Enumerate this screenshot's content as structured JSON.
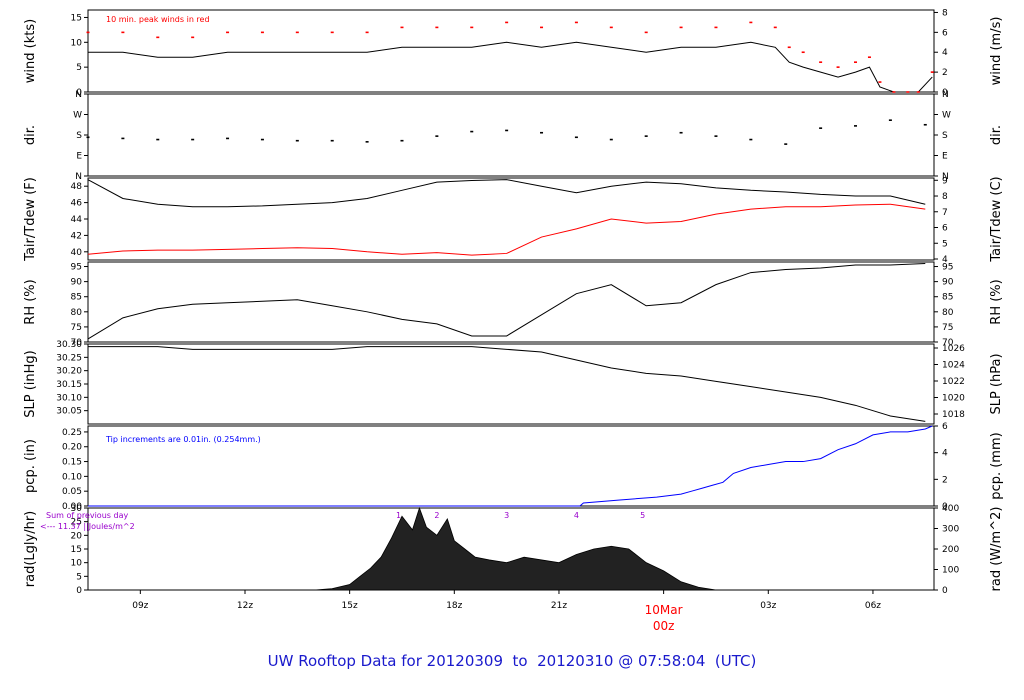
{
  "footer": {
    "title": "UW Rooftop Data for 20120309  to  20120310 @ 07:58:04  (UTC)"
  },
  "colors": {
    "axis": "#000000",
    "peak": "#ff0000",
    "dew": "#ff0000",
    "precip": "#0000ff",
    "radnote": "#9900cc",
    "title": "#1a1acc",
    "date": "#ff0000"
  },
  "chart_data": [
    {
      "id": "wind",
      "type": "line",
      "ylabel": "wind (kts)",
      "ylabel_right": "wind (m/s)",
      "ylim": [
        0,
        16.5
      ],
      "yticks": [
        0,
        5,
        10,
        15
      ],
      "yticks_right": [
        0,
        2,
        4,
        6,
        8
      ],
      "annotation": "10 min. peak winds in red",
      "x": [
        7.5,
        8.5,
        9.5,
        10.5,
        11.5,
        12.5,
        13.5,
        14.5,
        15.5,
        16.5,
        17.5,
        18.5,
        19.5,
        20.5,
        21.5,
        22.5,
        23.5,
        24.5,
        25.5,
        26.5,
        27.2,
        27.6,
        28.0,
        28.5,
        29.0,
        29.5,
        29.9,
        30.2,
        30.6,
        31.0,
        31.3,
        31.7
      ],
      "series": [
        {
          "values": [
            8,
            8,
            7,
            7,
            8,
            8,
            8,
            8,
            8,
            9,
            9,
            9,
            10,
            9,
            10,
            9,
            8,
            9,
            9,
            10,
            9,
            6,
            5,
            4,
            3,
            4,
            5,
            1,
            0,
            0,
            0,
            3
          ]
        },
        {
          "values": [
            12,
            12,
            11,
            11,
            12,
            12,
            12,
            12,
            12,
            13,
            13,
            13,
            14,
            13,
            14,
            13,
            12,
            13,
            13,
            14,
            13,
            9,
            8,
            6,
            5,
            6,
            7,
            2,
            0,
            0,
            0,
            4
          ]
        }
      ]
    },
    {
      "id": "dir",
      "type": "scatter",
      "ylabel": "dir.",
      "ylabel_right": "dir.",
      "ylim": [
        0,
        360
      ],
      "ytick_labels": [
        "N",
        "E",
        "S",
        "W",
        "N"
      ],
      "x": [
        7.5,
        8.5,
        9.5,
        10.5,
        11.5,
        12.5,
        13.5,
        14.5,
        15.5,
        16.5,
        17.5,
        18.5,
        19.5,
        20.5,
        21.5,
        22.5,
        23.5,
        24.5,
        25.5,
        26.5,
        27.5,
        28.5,
        29.5,
        30.5,
        31.5
      ],
      "series": [
        {
          "values": [
            170,
            165,
            160,
            160,
            165,
            160,
            155,
            155,
            150,
            155,
            175,
            195,
            200,
            190,
            170,
            160,
            175,
            190,
            175,
            160,
            140,
            210,
            220,
            245,
            225
          ]
        }
      ]
    },
    {
      "id": "temp",
      "type": "line",
      "ylabel": "Tair/Tdew (F)",
      "ylabel_right": "Tair/Tdew (C)",
      "ylim": [
        39,
        49
      ],
      "yticks": [
        40,
        42,
        44,
        46,
        48
      ],
      "yticks_right": [
        4,
        5,
        6,
        7,
        8,
        9
      ],
      "x": [
        7.5,
        8.5,
        9.5,
        10.5,
        11.5,
        12.5,
        13.5,
        14.5,
        15.5,
        16.5,
        17.5,
        18.5,
        19.5,
        20.5,
        21.5,
        22.5,
        23.5,
        24.5,
        25.5,
        26.5,
        27.5,
        28.5,
        29.5,
        30.5,
        31.5
      ],
      "series": [
        {
          "name": "Tair",
          "values": [
            48.8,
            46.5,
            45.8,
            45.5,
            45.5,
            45.6,
            45.8,
            46.0,
            46.5,
            47.5,
            48.5,
            48.7,
            48.8,
            48.0,
            47.2,
            48.0,
            48.5,
            48.3,
            47.8,
            47.5,
            47.3,
            47.0,
            46.8,
            46.8,
            45.8
          ]
        },
        {
          "name": "Tdew",
          "values": [
            39.7,
            40.1,
            40.2,
            40.2,
            40.3,
            40.4,
            40.5,
            40.4,
            40.0,
            39.7,
            39.9,
            39.6,
            39.8,
            41.8,
            42.8,
            44.0,
            43.5,
            43.7,
            44.6,
            45.2,
            45.5,
            45.5,
            45.7,
            45.8,
            45.2
          ]
        }
      ]
    },
    {
      "id": "rh",
      "type": "line",
      "ylabel": "RH (%)",
      "ylabel_right": "RH (%)",
      "ylim": [
        70,
        96.5
      ],
      "yticks": [
        70,
        75,
        80,
        85,
        90,
        95
      ],
      "x": [
        7.5,
        8.5,
        9.5,
        10.5,
        11.5,
        12.5,
        13.5,
        14.5,
        15.5,
        16.5,
        17.5,
        18.5,
        19.5,
        20.5,
        21.5,
        22.5,
        23.5,
        24.5,
        25.5,
        26.5,
        27.5,
        28.5,
        29.5,
        30.5,
        31.5
      ],
      "series": [
        {
          "values": [
            71,
            78,
            81,
            82.5,
            83,
            83.5,
            84,
            82,
            80,
            77.5,
            76,
            72,
            72,
            79,
            86,
            89,
            82,
            83,
            89,
            93,
            94,
            94.5,
            95.5,
            95.5,
            96
          ]
        }
      ]
    },
    {
      "id": "slp",
      "type": "line",
      "ylabel": "SLP (inHg)",
      "ylabel_right": "SLP (hPa)",
      "ylim": [
        30.0,
        30.3
      ],
      "yticks": [
        30.05,
        30.1,
        30.15,
        30.2,
        30.25,
        30.3
      ],
      "yticks_right": [
        1018,
        1020,
        1022,
        1024,
        1026
      ],
      "x": [
        7.5,
        8.5,
        9.5,
        10.5,
        11.5,
        12.5,
        13.5,
        14.5,
        15.5,
        16.5,
        17.5,
        18.5,
        19.5,
        20.5,
        21.5,
        22.5,
        23.5,
        24.5,
        25.5,
        26.5,
        27.5,
        28.5,
        29.5,
        30.5,
        31.5
      ],
      "series": [
        {
          "values": [
            30.29,
            30.29,
            30.29,
            30.28,
            30.28,
            30.28,
            30.28,
            30.28,
            30.29,
            30.29,
            30.29,
            30.29,
            30.28,
            30.27,
            30.24,
            30.21,
            30.19,
            30.18,
            30.16,
            30.14,
            30.12,
            30.1,
            30.07,
            30.03,
            30.01
          ]
        }
      ]
    },
    {
      "id": "pcp",
      "type": "line",
      "ylabel": "pcp. (in)",
      "ylabel_right": "pcp. (mm)",
      "ylim": [
        0,
        0.27
      ],
      "yticks": [
        0.0,
        0.05,
        0.1,
        0.15,
        0.2,
        0.25
      ],
      "yticks_right": [
        0,
        2,
        4,
        6
      ],
      "annotation": "Tip increments are 0.01in. (0.254mm.)",
      "x": [
        7.5,
        21.6,
        21.7,
        22.7,
        23.8,
        24.5,
        24.8,
        25.1,
        25.4,
        25.7,
        26.0,
        26.5,
        27.0,
        27.5,
        28.0,
        28.5,
        29.0,
        29.5,
        30.0,
        30.5,
        31.0,
        31.5,
        31.7
      ],
      "series": [
        {
          "values": [
            0.0,
            0.0,
            0.01,
            0.02,
            0.03,
            0.04,
            0.05,
            0.06,
            0.07,
            0.08,
            0.11,
            0.13,
            0.14,
            0.15,
            0.15,
            0.16,
            0.19,
            0.21,
            0.24,
            0.25,
            0.25,
            0.26,
            0.27
          ]
        }
      ]
    },
    {
      "id": "rad",
      "type": "area",
      "ylabel": "rad(Lgly/hr)",
      "ylabel_right": "rad (W/m^2)",
      "ylim": [
        0,
        30
      ],
      "yticks": [
        0,
        5,
        10,
        15,
        20,
        25,
        30
      ],
      "yticks_right": [
        0,
        100,
        200,
        300,
        400
      ],
      "annotation_lines": [
        "Sum of previous day",
        "<--- 11.37 ||Joules/m^2"
      ],
      "markers": [
        "1",
        "2",
        "3",
        "4",
        "5"
      ],
      "markers_x": [
        16.4,
        17.5,
        19.5,
        21.5,
        23.4
      ],
      "x": [
        14.0,
        14.5,
        15.0,
        15.3,
        15.6,
        15.9,
        16.2,
        16.5,
        16.8,
        17.0,
        17.2,
        17.5,
        17.8,
        18.0,
        18.3,
        18.6,
        19.0,
        19.5,
        20.0,
        20.5,
        21.0,
        21.5,
        22.0,
        22.5,
        23.0,
        23.5,
        24.0,
        24.5,
        25.0,
        25.5
      ],
      "series": [
        {
          "values": [
            0,
            0.5,
            2,
            5,
            8,
            12,
            19,
            27,
            22,
            30,
            23,
            20,
            26,
            18,
            15,
            12,
            11,
            10,
            12,
            11,
            10,
            13,
            15,
            16,
            15,
            10,
            7,
            3,
            1,
            0
          ]
        }
      ]
    },
    {
      "id": "time_axis",
      "tick_labels": [
        "09z",
        "12z",
        "15z",
        "18z",
        "21z",
        "03z",
        "06z"
      ],
      "tick_hours": [
        9,
        12,
        15,
        18,
        21,
        27,
        30
      ],
      "date_label": "10Mar",
      "date_label_sub": "00z",
      "date_hour": 24,
      "xlim": [
        7.5,
        31.75
      ]
    }
  ]
}
